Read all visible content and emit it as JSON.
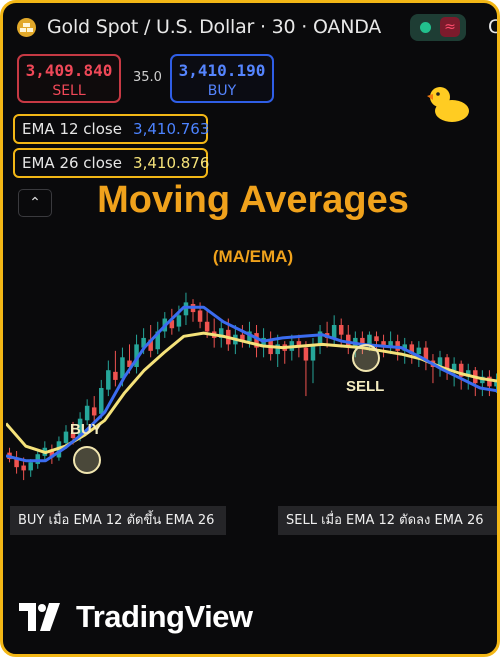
{
  "header": {
    "symbol_title": "Gold Spot / U.S. Dollar · 30 · OANDA",
    "next_tab_initial": "C",
    "status_icon": "market-open-dot",
    "status_wave_icon": "≈"
  },
  "trade": {
    "sell_price": "3,409.840",
    "sell_label": "SELL",
    "spread": "35.0",
    "buy_price": "3,410.190",
    "buy_label": "BUY"
  },
  "indicators": [
    {
      "name": "EMA 12 close",
      "value": "3,410.763",
      "color": "#4c83ff"
    },
    {
      "name": "EMA 26 close",
      "value": "3,410.876",
      "color": "#f5e27a"
    }
  ],
  "collapse_icon": "⌃",
  "title": "Moving Averages",
  "subtitle": "(MA/EMA)",
  "signals": {
    "buy": "BUY",
    "sell": "SELL"
  },
  "notes": {
    "buy": "BUY เมื่อ EMA 12 ตัดขึ้น EMA 26",
    "sell": "SELL เมื่อ EMA 12 ตัดลง EMA 26"
  },
  "brand": {
    "name": "TradingView"
  },
  "colors": {
    "accent": "#f3b716",
    "title": "#f0a21c",
    "bull": "#26a69a",
    "bear": "#ef5350",
    "ema12": "#3b6cf0",
    "ema26": "#f5e27a"
  },
  "chart_data": {
    "type": "line",
    "ema12": [
      3,
      0,
      0,
      8,
      18,
      30,
      52,
      70,
      83,
      95,
      95,
      86,
      80,
      74,
      76,
      77,
      78,
      74,
      72,
      71,
      70,
      64,
      57,
      51,
      45,
      43
    ],
    "ema26": [
      23,
      9,
      5,
      9,
      16,
      25,
      42,
      56,
      67,
      77,
      79,
      77,
      74,
      71,
      70,
      71,
      72,
      71,
      70,
      68,
      66,
      63,
      58,
      54,
      51,
      49
    ],
    "candles": [
      [
        5,
        1,
        8,
        -1
      ],
      [
        2,
        -4,
        6,
        -8
      ],
      [
        -3,
        -6,
        2,
        -12
      ],
      [
        -6,
        -1,
        1,
        -10
      ],
      [
        -2,
        4,
        7,
        -5
      ],
      [
        3,
        8,
        12,
        0
      ],
      [
        7,
        2,
        10,
        -2
      ],
      [
        2,
        12,
        15,
        0
      ],
      [
        11,
        18,
        22,
        8
      ],
      [
        17,
        14,
        24,
        10
      ],
      [
        14,
        26,
        30,
        12
      ],
      [
        25,
        34,
        38,
        22
      ],
      [
        33,
        28,
        40,
        24
      ],
      [
        29,
        45,
        50,
        26
      ],
      [
        44,
        56,
        62,
        40
      ],
      [
        55,
        50,
        68,
        46
      ],
      [
        51,
        64,
        70,
        46
      ],
      [
        62,
        58,
        72,
        54
      ],
      [
        58,
        72,
        78,
        54
      ],
      [
        70,
        76,
        82,
        66
      ],
      [
        75,
        68,
        84,
        64
      ],
      [
        69,
        80,
        86,
        66
      ],
      [
        80,
        88,
        92,
        76
      ],
      [
        87,
        82,
        94,
        78
      ],
      [
        83,
        90,
        96,
        80
      ],
      [
        90,
        98,
        104,
        84
      ],
      [
        97,
        92,
        100,
        86
      ],
      [
        93,
        86,
        98,
        82
      ],
      [
        86,
        80,
        94,
        76
      ],
      [
        80,
        76,
        88,
        70
      ],
      [
        76,
        82,
        86,
        70
      ],
      [
        81,
        72,
        88,
        68
      ],
      [
        72,
        78,
        84,
        66
      ],
      [
        78,
        74,
        84,
        70
      ],
      [
        74,
        80,
        86,
        70
      ],
      [
        79,
        70,
        84,
        64
      ],
      [
        71,
        76,
        82,
        64
      ],
      [
        75,
        66,
        80,
        62
      ],
      [
        66,
        72,
        78,
        58
      ],
      [
        72,
        68,
        74,
        60
      ],
      [
        68,
        74,
        78,
        62
      ],
      [
        74,
        70,
        78,
        64
      ],
      [
        70,
        62,
        74,
        40
      ],
      [
        62,
        72,
        76,
        48
      ],
      [
        72,
        80,
        84,
        66
      ],
      [
        79,
        76,
        86,
        70
      ],
      [
        76,
        84,
        90,
        72
      ],
      [
        84,
        78,
        88,
        70
      ],
      [
        78,
        70,
        84,
        66
      ],
      [
        70,
        76,
        80,
        64
      ],
      [
        76,
        72,
        80,
        66
      ],
      [
        72,
        78,
        80,
        68
      ],
      [
        77,
        74,
        80,
        68
      ],
      [
        74,
        70,
        78,
        64
      ],
      [
        70,
        74,
        80,
        66
      ],
      [
        74,
        68,
        78,
        62
      ],
      [
        68,
        72,
        76,
        60
      ],
      [
        72,
        66,
        74,
        60
      ],
      [
        66,
        70,
        74,
        58
      ],
      [
        70,
        62,
        74,
        56
      ],
      [
        62,
        58,
        66,
        48
      ],
      [
        58,
        64,
        68,
        52
      ],
      [
        64,
        56,
        66,
        50
      ],
      [
        56,
        60,
        64,
        46
      ],
      [
        60,
        52,
        62,
        44
      ],
      [
        52,
        56,
        60,
        44
      ],
      [
        56,
        48,
        58,
        40
      ],
      [
        48,
        52,
        56,
        40
      ],
      [
        52,
        46,
        56,
        40
      ],
      [
        46,
        50,
        54,
        42
      ]
    ]
  }
}
